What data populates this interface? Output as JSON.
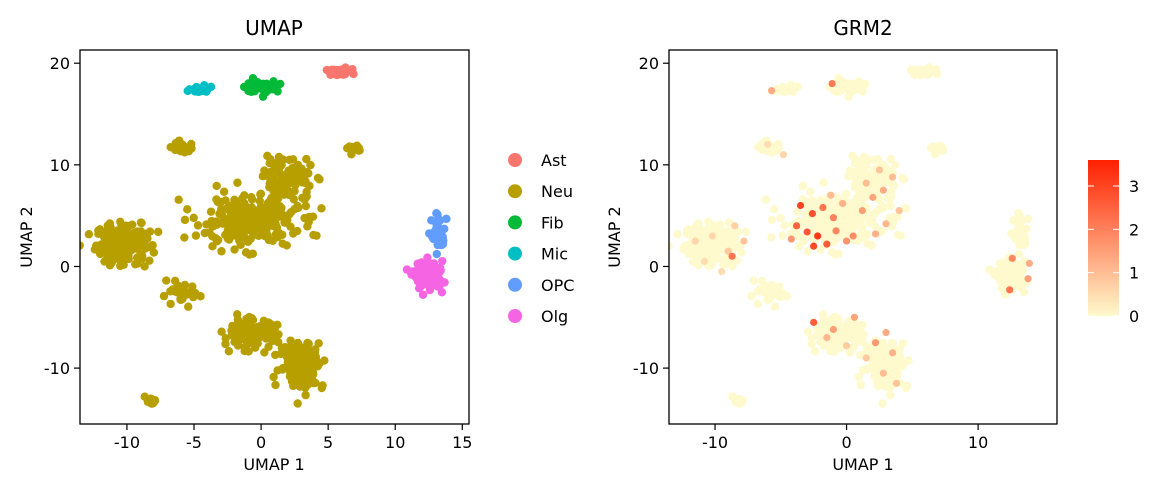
{
  "chart_data": [
    {
      "type": "scatter",
      "title": "UMAP",
      "xlabel": "UMAP 1",
      "ylabel": "UMAP 2",
      "xlim": [
        -13.5,
        15.5
      ],
      "ylim": [
        -15.5,
        21.3
      ],
      "xticks": [
        {
          "value": -10,
          "label": "-10"
        },
        {
          "value": -5,
          "label": "-5"
        },
        {
          "value": 0,
          "label": "0"
        },
        {
          "value": 5,
          "label": "5"
        },
        {
          "value": 10,
          "label": "10"
        },
        {
          "value": 15,
          "label": "15"
        }
      ],
      "yticks": [
        {
          "value": -10,
          "label": "-10"
        },
        {
          "value": 0,
          "label": "0"
        },
        {
          "value": 10,
          "label": "10"
        },
        {
          "value": 20,
          "label": "20"
        }
      ],
      "grid": false,
      "legend_position": "right",
      "series": [
        {
          "name": "Ast",
          "color": "#F8766D",
          "clusters": [
            {
              "center": [
                5.8,
                19.1
              ],
              "spread": [
                1.1,
                0.35
              ],
              "count": 45
            }
          ]
        },
        {
          "name": "Neu",
          "color": "#B79F00",
          "clusters": [
            {
              "center": [
                -10.3,
                2.2
              ],
              "spread": [
                2.2,
                2.3
              ],
              "count": 180
            },
            {
              "center": [
                -1.0,
                4.5
              ],
              "spread": [
                4.2,
                2.8
              ],
              "count": 260
            },
            {
              "center": [
                2.0,
                8.5
              ],
              "spread": [
                2.0,
                2.4
              ],
              "count": 90
            },
            {
              "center": [
                -5.8,
                11.6
              ],
              "spread": [
                0.9,
                0.8
              ],
              "count": 25
            },
            {
              "center": [
                7.0,
                11.5
              ],
              "spread": [
                0.6,
                0.4
              ],
              "count": 14
            },
            {
              "center": [
                -6.0,
                -2.8
              ],
              "spread": [
                1.6,
                1.1
              ],
              "count": 30
            },
            {
              "center": [
                -0.8,
                -6.6
              ],
              "spread": [
                2.2,
                1.6
              ],
              "count": 110
            },
            {
              "center": [
                3.0,
                -9.6
              ],
              "spread": [
                1.8,
                2.6
              ],
              "count": 140
            },
            {
              "center": [
                -8.2,
                -13.2
              ],
              "spread": [
                0.5,
                0.4
              ],
              "count": 10
            }
          ]
        },
        {
          "name": "Fib",
          "color": "#00BA38",
          "clusters": [
            {
              "center": [
                0.1,
                17.7
              ],
              "spread": [
                1.4,
                0.65
              ],
              "count": 50
            }
          ]
        },
        {
          "name": "Mic",
          "color": "#00BFC4",
          "clusters": [
            {
              "center": [
                -4.4,
                17.4
              ],
              "spread": [
                1.1,
                0.35
              ],
              "count": 26
            }
          ]
        },
        {
          "name": "OPC",
          "color": "#619CFF",
          "clusters": [
            {
              "center": [
                13.2,
                3.2
              ],
              "spread": [
                0.55,
                1.9
              ],
              "count": 45
            }
          ]
        },
        {
          "name": "Olg",
          "color": "#F564E3",
          "clusters": [
            {
              "center": [
                12.5,
                -0.9
              ],
              "spread": [
                1.2,
                1.5
              ],
              "count": 110
            }
          ]
        }
      ]
    },
    {
      "type": "scatter",
      "title": "GRM2",
      "xlabel": "UMAP 1",
      "ylabel": "UMAP 2",
      "xlim": [
        -13.5,
        16.0
      ],
      "ylim": [
        -15.5,
        21.3
      ],
      "xticks": [
        {
          "value": -10,
          "label": "-10"
        },
        {
          "value": 0,
          "label": "0"
        },
        {
          "value": 10,
          "label": "10"
        }
      ],
      "yticks": [
        {
          "value": -10,
          "label": "-10"
        },
        {
          "value": 0,
          "label": "0"
        },
        {
          "value": 10,
          "label": "10"
        },
        {
          "value": 20,
          "label": "20"
        }
      ],
      "grid": false,
      "color_scale": {
        "low": "#FFFACD",
        "high": "#FF2000",
        "min": 0,
        "max": 3.6,
        "ticks": [
          {
            "value": 0,
            "label": "0"
          },
          {
            "value": 1,
            "label": "1"
          },
          {
            "value": 2,
            "label": "2"
          },
          {
            "value": 3,
            "label": "3"
          }
        ]
      },
      "background_color": "#FFFACD",
      "expressing_cells": [
        [
          -10.2,
          3.0,
          0.6
        ],
        [
          -9.0,
          1.5,
          0.8
        ],
        [
          -8.5,
          4.0,
          0.7
        ],
        [
          -10.8,
          0.5,
          0.5
        ],
        [
          -8.7,
          1.0,
          2.2
        ],
        [
          -11.5,
          2.5,
          0.6
        ],
        [
          -9.5,
          -0.5,
          0.5
        ],
        [
          -7.8,
          2.5,
          0.9
        ],
        [
          -3.5,
          6.0,
          3.0
        ],
        [
          -2.6,
          5.2,
          2.8
        ],
        [
          -3.8,
          4.0,
          2.5
        ],
        [
          -2.2,
          3.0,
          3.2
        ],
        [
          -1.5,
          2.2,
          2.6
        ],
        [
          -2.5,
          2.0,
          2.9
        ],
        [
          -1.0,
          4.8,
          2.0
        ],
        [
          0.5,
          3.0,
          1.8
        ],
        [
          1.2,
          5.5,
          1.5
        ],
        [
          -0.3,
          6.2,
          1.2
        ],
        [
          2.0,
          6.8,
          1.4
        ],
        [
          1.5,
          8.2,
          1.0
        ],
        [
          2.8,
          7.5,
          1.3
        ],
        [
          3.0,
          4.2,
          1.1
        ],
        [
          -4.2,
          2.7,
          1.6
        ],
        [
          0.0,
          2.5,
          1.7
        ],
        [
          2.5,
          9.5,
          0.9
        ],
        [
          3.5,
          8.8,
          1.0
        ],
        [
          -1.8,
          5.8,
          2.2
        ],
        [
          -0.8,
          3.5,
          1.9
        ],
        [
          4.0,
          5.5,
          0.9
        ],
        [
          2.2,
          3.2,
          1.2
        ],
        [
          -3.0,
          3.4,
          2.7
        ],
        [
          -1.2,
          7.0,
          1.0
        ],
        [
          -2.5,
          -5.5,
          2.6
        ],
        [
          -1.0,
          -6.2,
          1.5
        ],
        [
          0.6,
          -5.0,
          1.4
        ],
        [
          2.2,
          -7.5,
          1.6
        ],
        [
          3.5,
          -8.5,
          1.2
        ],
        [
          2.8,
          -10.5,
          1.0
        ],
        [
          1.5,
          -9.0,
          0.8
        ],
        [
          -1.5,
          -7.0,
          1.1
        ],
        [
          3.8,
          -11.5,
          0.9
        ],
        [
          0.0,
          -7.8,
          0.8
        ],
        [
          3.0,
          -6.5,
          1.3
        ],
        [
          12.4,
          -2.3,
          2.2
        ],
        [
          12.6,
          0.8,
          1.9
        ],
        [
          13.8,
          -1.2,
          1.5
        ],
        [
          13.9,
          0.3,
          1.3
        ],
        [
          -5.7,
          17.3,
          1.3
        ],
        [
          -1.1,
          18.0,
          2.1
        ],
        [
          -6.0,
          12.0,
          0.5
        ],
        [
          -4.8,
          11.0,
          0.6
        ]
      ]
    }
  ]
}
